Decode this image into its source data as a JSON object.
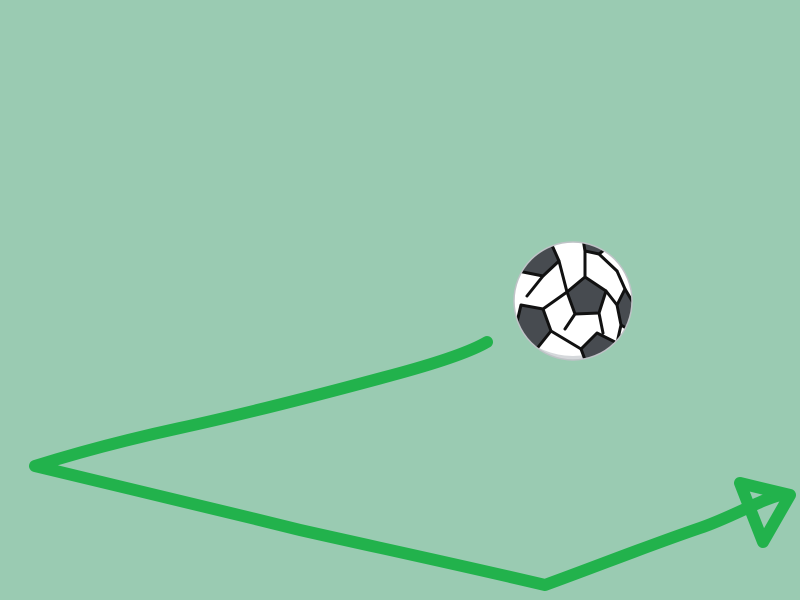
{
  "scene": {
    "background_color": "#9acbb2",
    "path_color": "#22b24c",
    "ball": {
      "icon": "soccer-ball-icon",
      "panel_dark": "#474b50",
      "panel_light": "#ffffff",
      "shade": "#d5d8db",
      "seam": "#111111"
    },
    "arrow_icon": "arrowhead-icon"
  }
}
